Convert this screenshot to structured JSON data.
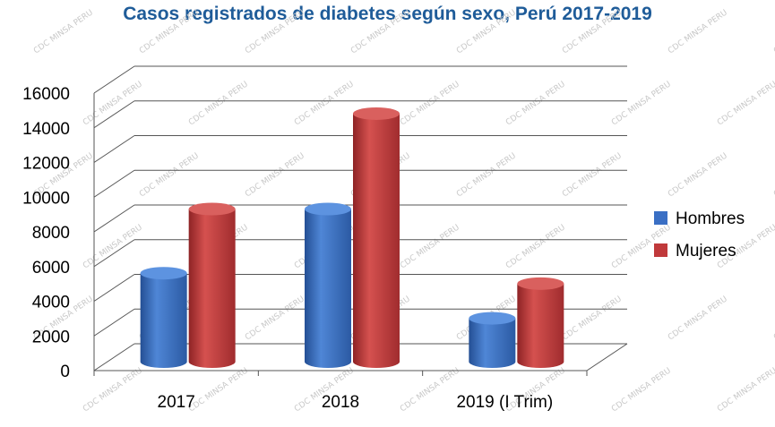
{
  "chart_data": {
    "type": "bar",
    "title": "Casos registrados de diabetes según sexo, Perú 2017-2019",
    "categories": [
      "2017",
      "2018",
      "2019 (I Trim)"
    ],
    "series": [
      {
        "name": "Hombres",
        "values": [
          5100,
          8800,
          2500
        ],
        "color": "#3a6fc4"
      },
      {
        "name": "Mujeres",
        "values": [
          8800,
          14300,
          4500
        ],
        "color": "#c0393b"
      }
    ],
    "yticks": [
      "0",
      "2000",
      "4000",
      "6000",
      "8000",
      "10000",
      "12000",
      "14000",
      "16000"
    ],
    "ylim": [
      0,
      16000
    ],
    "grid": true,
    "legend": "right",
    "watermark": "CDC MINSA PERU"
  }
}
